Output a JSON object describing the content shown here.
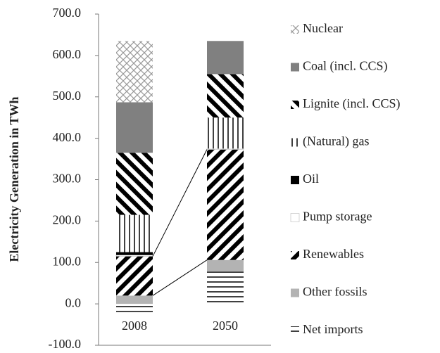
{
  "chart_data": {
    "type": "stacked-bar",
    "y_label": "Electricity Generation in TWh",
    "categories": [
      "2008",
      "2050"
    ],
    "ylim": [
      -100,
      700
    ],
    "yticks": [
      {
        "value": -100,
        "label": "-100.0"
      },
      {
        "value": 0,
        "label": "0.0"
      },
      {
        "value": 100,
        "label": "100.0"
      },
      {
        "value": 200,
        "label": "200.0"
      },
      {
        "value": 300,
        "label": "300.0"
      },
      {
        "value": 400,
        "label": "400.0"
      },
      {
        "value": 500,
        "label": "500.0"
      },
      {
        "value": 600,
        "label": "600.0"
      },
      {
        "value": 700,
        "label": "700.0"
      }
    ],
    "series": [
      {
        "name": "Net imports",
        "color": "#000000",
        "pattern": "horizontal",
        "values": [
          -20,
          78
        ]
      },
      {
        "name": "Other fossils",
        "color": "#b3b3b3",
        "pattern": "solid",
        "values": [
          20,
          28
        ]
      },
      {
        "name": "Renewables",
        "color": "#000000",
        "pattern": "diagonal-down",
        "values": [
          95,
          267
        ]
      },
      {
        "name": "Pump storage",
        "color": "#ffffff",
        "pattern": "solid",
        "values": [
          3,
          2
        ]
      },
      {
        "name": "Oil",
        "color": "#000000",
        "pattern": "solid",
        "values": [
          7,
          0
        ]
      },
      {
        "name": "(Natural) gas",
        "color": "#000000",
        "pattern": "vertical",
        "values": [
          90,
          75
        ]
      },
      {
        "name": "Lignite (incl. CCS)",
        "color": "#000000",
        "pattern": "diagonal-up",
        "values": [
          150,
          105
        ]
      },
      {
        "name": "Coal (incl. CCS)",
        "color": "#808080",
        "pattern": "solid",
        "values": [
          122,
          80
        ]
      },
      {
        "name": "Nuclear",
        "color": "#999999",
        "pattern": "crosshatch",
        "values": [
          148,
          0
        ]
      }
    ]
  }
}
